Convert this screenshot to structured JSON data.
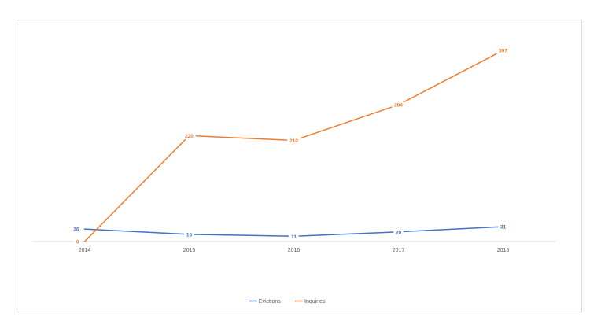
{
  "chart_data": {
    "type": "line",
    "categories": [
      "2014",
      "2015",
      "2016",
      "2017",
      "2018"
    ],
    "series": [
      {
        "name": "Evictions",
        "values": [
          26,
          15,
          11,
          20,
          31
        ],
        "color": "#4472c4"
      },
      {
        "name": "Inquiries",
        "values": [
          0,
          220,
          210,
          284,
          397
        ],
        "color": "#ed7d31"
      }
    ],
    "title": "",
    "xlabel": "",
    "ylabel": "",
    "ylim": [
      0,
      420
    ],
    "grid": false,
    "data_labels": true,
    "legend_position": "bottom"
  }
}
